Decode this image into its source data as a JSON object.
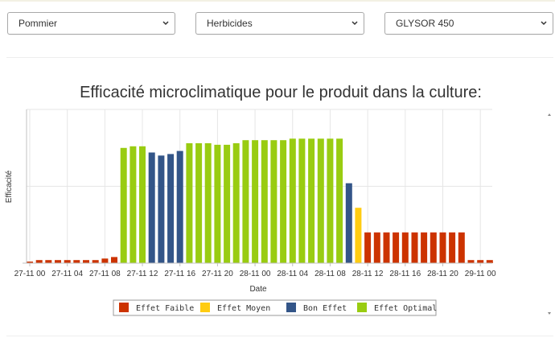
{
  "filters": {
    "crop": {
      "value": "Pommier"
    },
    "category": {
      "value": "Herbicides"
    },
    "product": {
      "value": "GLYSOR 450"
    }
  },
  "icons": {
    "dropdown": "chevron-down-icon",
    "scroll_up": "scroll-up-icon",
    "scroll_down": "scroll-down-icon"
  },
  "chart_data": {
    "type": "bar",
    "title": "Efficacité microclimatique pour le produit dans la culture:",
    "xlabel": "Date",
    "ylabel": "Efficacité",
    "ylim": [
      0,
      100
    ],
    "y_ticks_visible": false,
    "grid": true,
    "legend_position": "bottom",
    "x_tick_labels": [
      "27-11 00",
      "27-11 04",
      "27-11 08",
      "27-11 12",
      "27-11 16",
      "27-11 20",
      "28-11 00",
      "28-11 04",
      "28-11 08",
      "28-11 12",
      "28-11 16",
      "28-11 20",
      "29-11 00"
    ],
    "x_tick_hours": [
      0,
      4,
      8,
      12,
      16,
      20,
      24,
      28,
      32,
      36,
      40,
      44,
      48
    ],
    "hours": [
      0,
      1,
      2,
      3,
      4,
      5,
      6,
      7,
      8,
      9,
      10,
      11,
      12,
      13,
      14,
      15,
      16,
      17,
      18,
      19,
      20,
      21,
      22,
      23,
      24,
      25,
      26,
      27,
      28,
      29,
      30,
      31,
      32,
      33,
      34,
      35,
      36,
      37,
      38,
      39,
      40,
      41,
      42,
      43,
      44,
      45,
      46,
      47,
      48,
      49
    ],
    "values": [
      1,
      2,
      2,
      2,
      2,
      2,
      2,
      2,
      3,
      4,
      75,
      76,
      76,
      72,
      70,
      71,
      73,
      78,
      78,
      78,
      77,
      77,
      78,
      80,
      80,
      80,
      80,
      80,
      81,
      81,
      81,
      81,
      81,
      81,
      52,
      36,
      20,
      20,
      20,
      20,
      20,
      20,
      20,
      20,
      20,
      20,
      20,
      2,
      2,
      2
    ],
    "classes": [
      "faible",
      "faible",
      "faible",
      "faible",
      "faible",
      "faible",
      "faible",
      "faible",
      "faible",
      "faible",
      "optimal",
      "optimal",
      "optimal",
      "bon",
      "bon",
      "bon",
      "bon",
      "optimal",
      "optimal",
      "optimal",
      "optimal",
      "optimal",
      "optimal",
      "optimal",
      "optimal",
      "optimal",
      "optimal",
      "optimal",
      "optimal",
      "optimal",
      "optimal",
      "optimal",
      "optimal",
      "optimal",
      "bon",
      "moyen",
      "faible",
      "faible",
      "faible",
      "faible",
      "faible",
      "faible",
      "faible",
      "faible",
      "faible",
      "faible",
      "faible",
      "faible",
      "faible",
      "faible"
    ],
    "legend": [
      {
        "key": "faible",
        "label": "Effet Faible",
        "color": "#cc3300"
      },
      {
        "key": "moyen",
        "label": "Effet Moyen",
        "color": "#ffcc11"
      },
      {
        "key": "bon",
        "label": "Bon Effet",
        "color": "#335588"
      },
      {
        "key": "optimal",
        "label": "Effet Optimal",
        "color": "#99cc11"
      }
    ]
  }
}
